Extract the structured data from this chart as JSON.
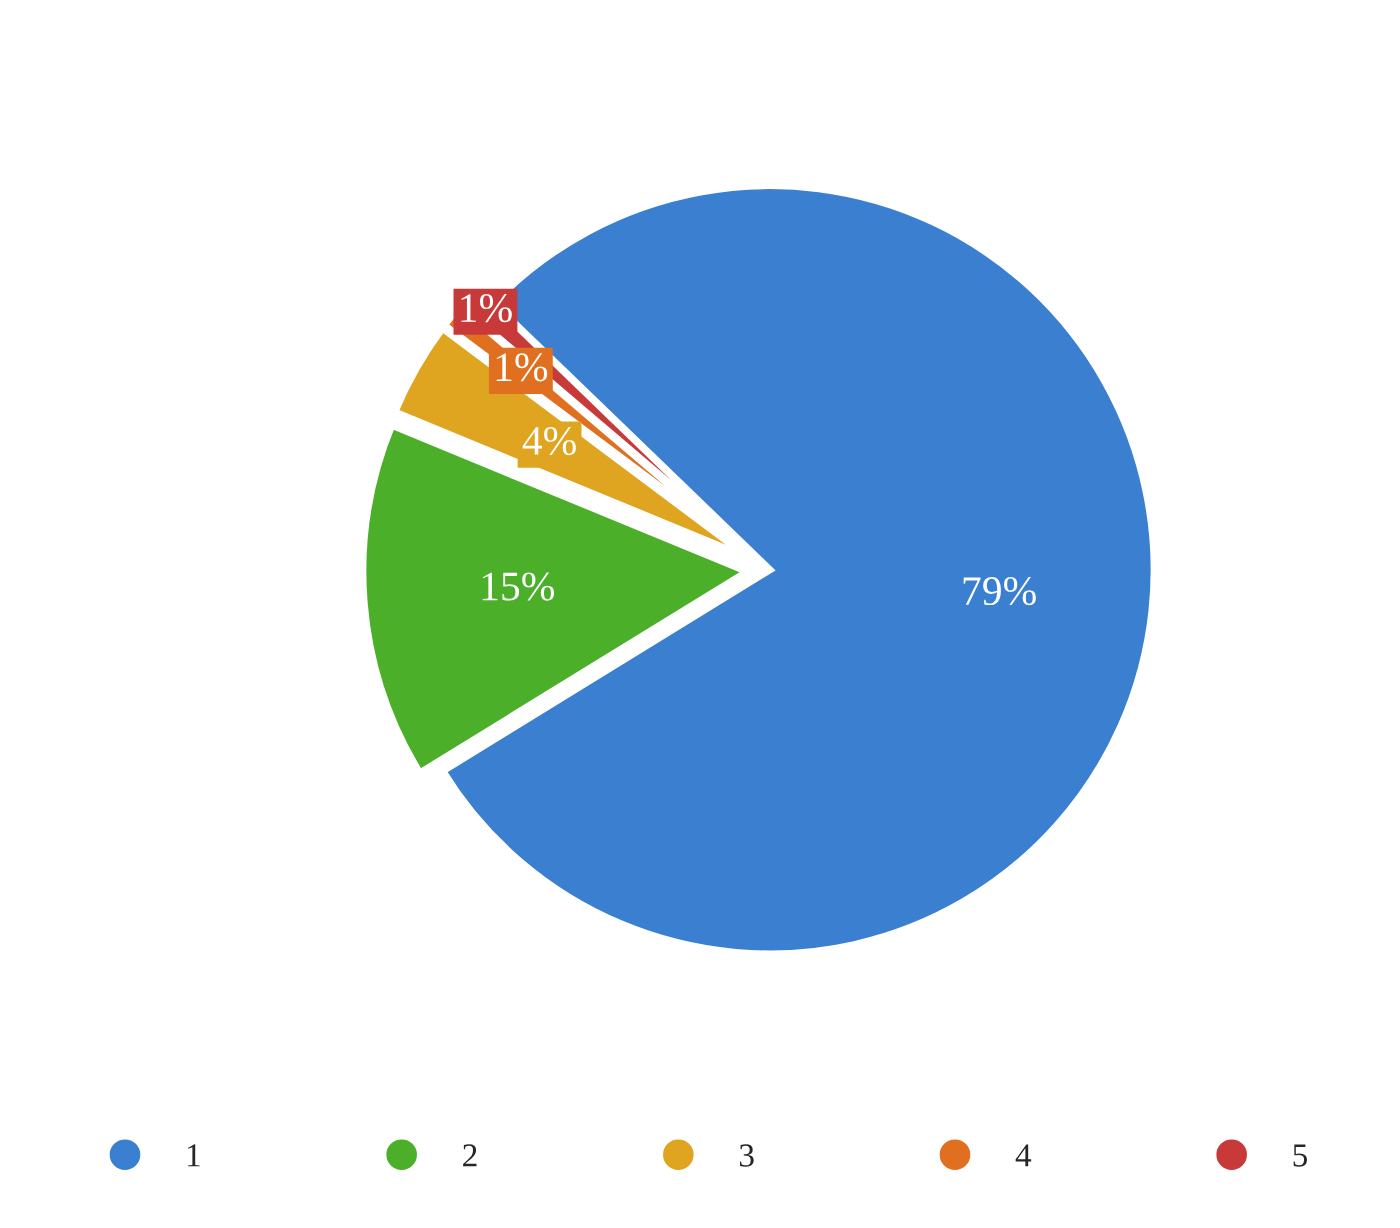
{
  "chart_data": {
    "type": "pie",
    "categories": [
      "1",
      "2",
      "3",
      "4",
      "5"
    ],
    "values": [
      79,
      15,
      4,
      1,
      1
    ],
    "colors": [
      "#3a7fd0",
      "#4caf2a",
      "#e0a520",
      "#e07020",
      "#c83a3a"
    ],
    "value_labels": [
      "79%",
      "15%",
      "4%",
      "1%",
      "1%"
    ],
    "legend": "bottom"
  }
}
